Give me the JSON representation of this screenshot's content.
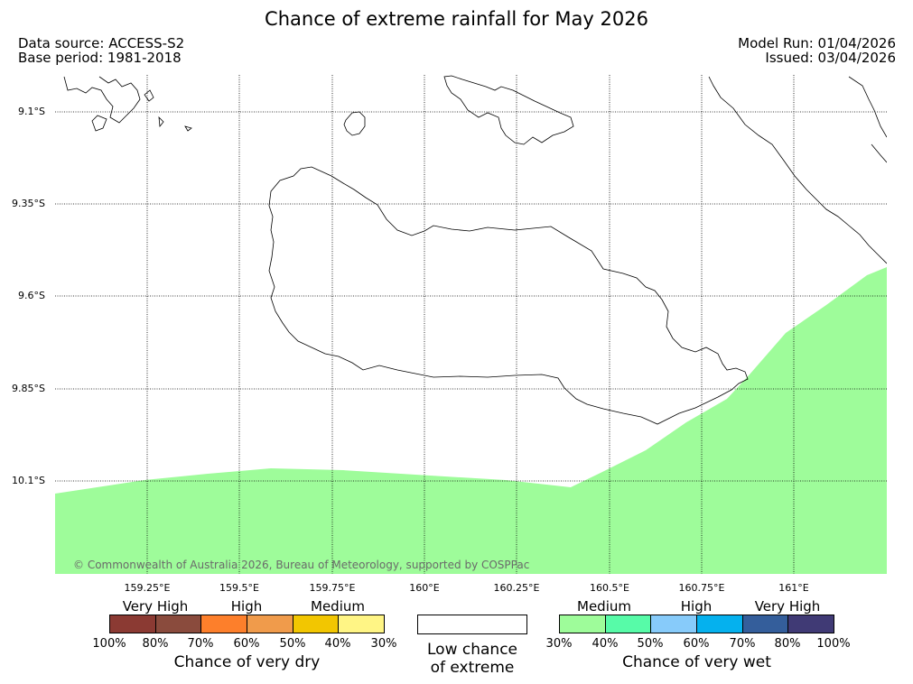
{
  "title": "Chance of extreme rainfall for May 2026",
  "data_source": "Data source: ACCESS-S2",
  "base_period": "Base period: 1981-2018",
  "model_run": "Model Run: 01/04/2026",
  "issued": "Issued: 03/04/2026",
  "copyright": "© Commonwealth of Australia 2026, Bureau of Meteorology, supported by COSPPac",
  "latitudes": [
    "9.1°S",
    "9.35°S",
    "9.6°S",
    "9.85°S",
    "10.1°S"
  ],
  "longitudes": [
    "159.25°E",
    "159.5°E",
    "159.75°E",
    "160°E",
    "160.25°E",
    "160.5°E",
    "160.75°E",
    "161°E"
  ],
  "map_fill_color": "#9efc9a",
  "map_fill_category": "Chance of very wet: Medium (30%–40%)",
  "dry_legend": {
    "title": "Chance of very dry",
    "categories": [
      "Very High",
      "High",
      "Medium"
    ],
    "ticks": [
      "100%",
      "80%",
      "70%",
      "60%",
      "50%",
      "40%",
      "30%"
    ],
    "colors": [
      "#8b3a33",
      "#8a4b3d",
      "#fd7f2b",
      "#f09b4b",
      "#f2c601",
      "#fff585"
    ]
  },
  "low_legend": {
    "line1": "Low chance",
    "line2": "of extreme",
    "color": "#ffffff"
  },
  "wet_legend": {
    "title": "Chance of very wet",
    "categories": [
      "Medium",
      "High",
      "Very High"
    ],
    "ticks": [
      "30%",
      "40%",
      "50%",
      "60%",
      "70%",
      "80%",
      "100%"
    ],
    "colors": [
      "#9efc9a",
      "#57fba8",
      "#87cbfa",
      "#05b1ee",
      "#345e9b",
      "#403a75"
    ]
  }
}
